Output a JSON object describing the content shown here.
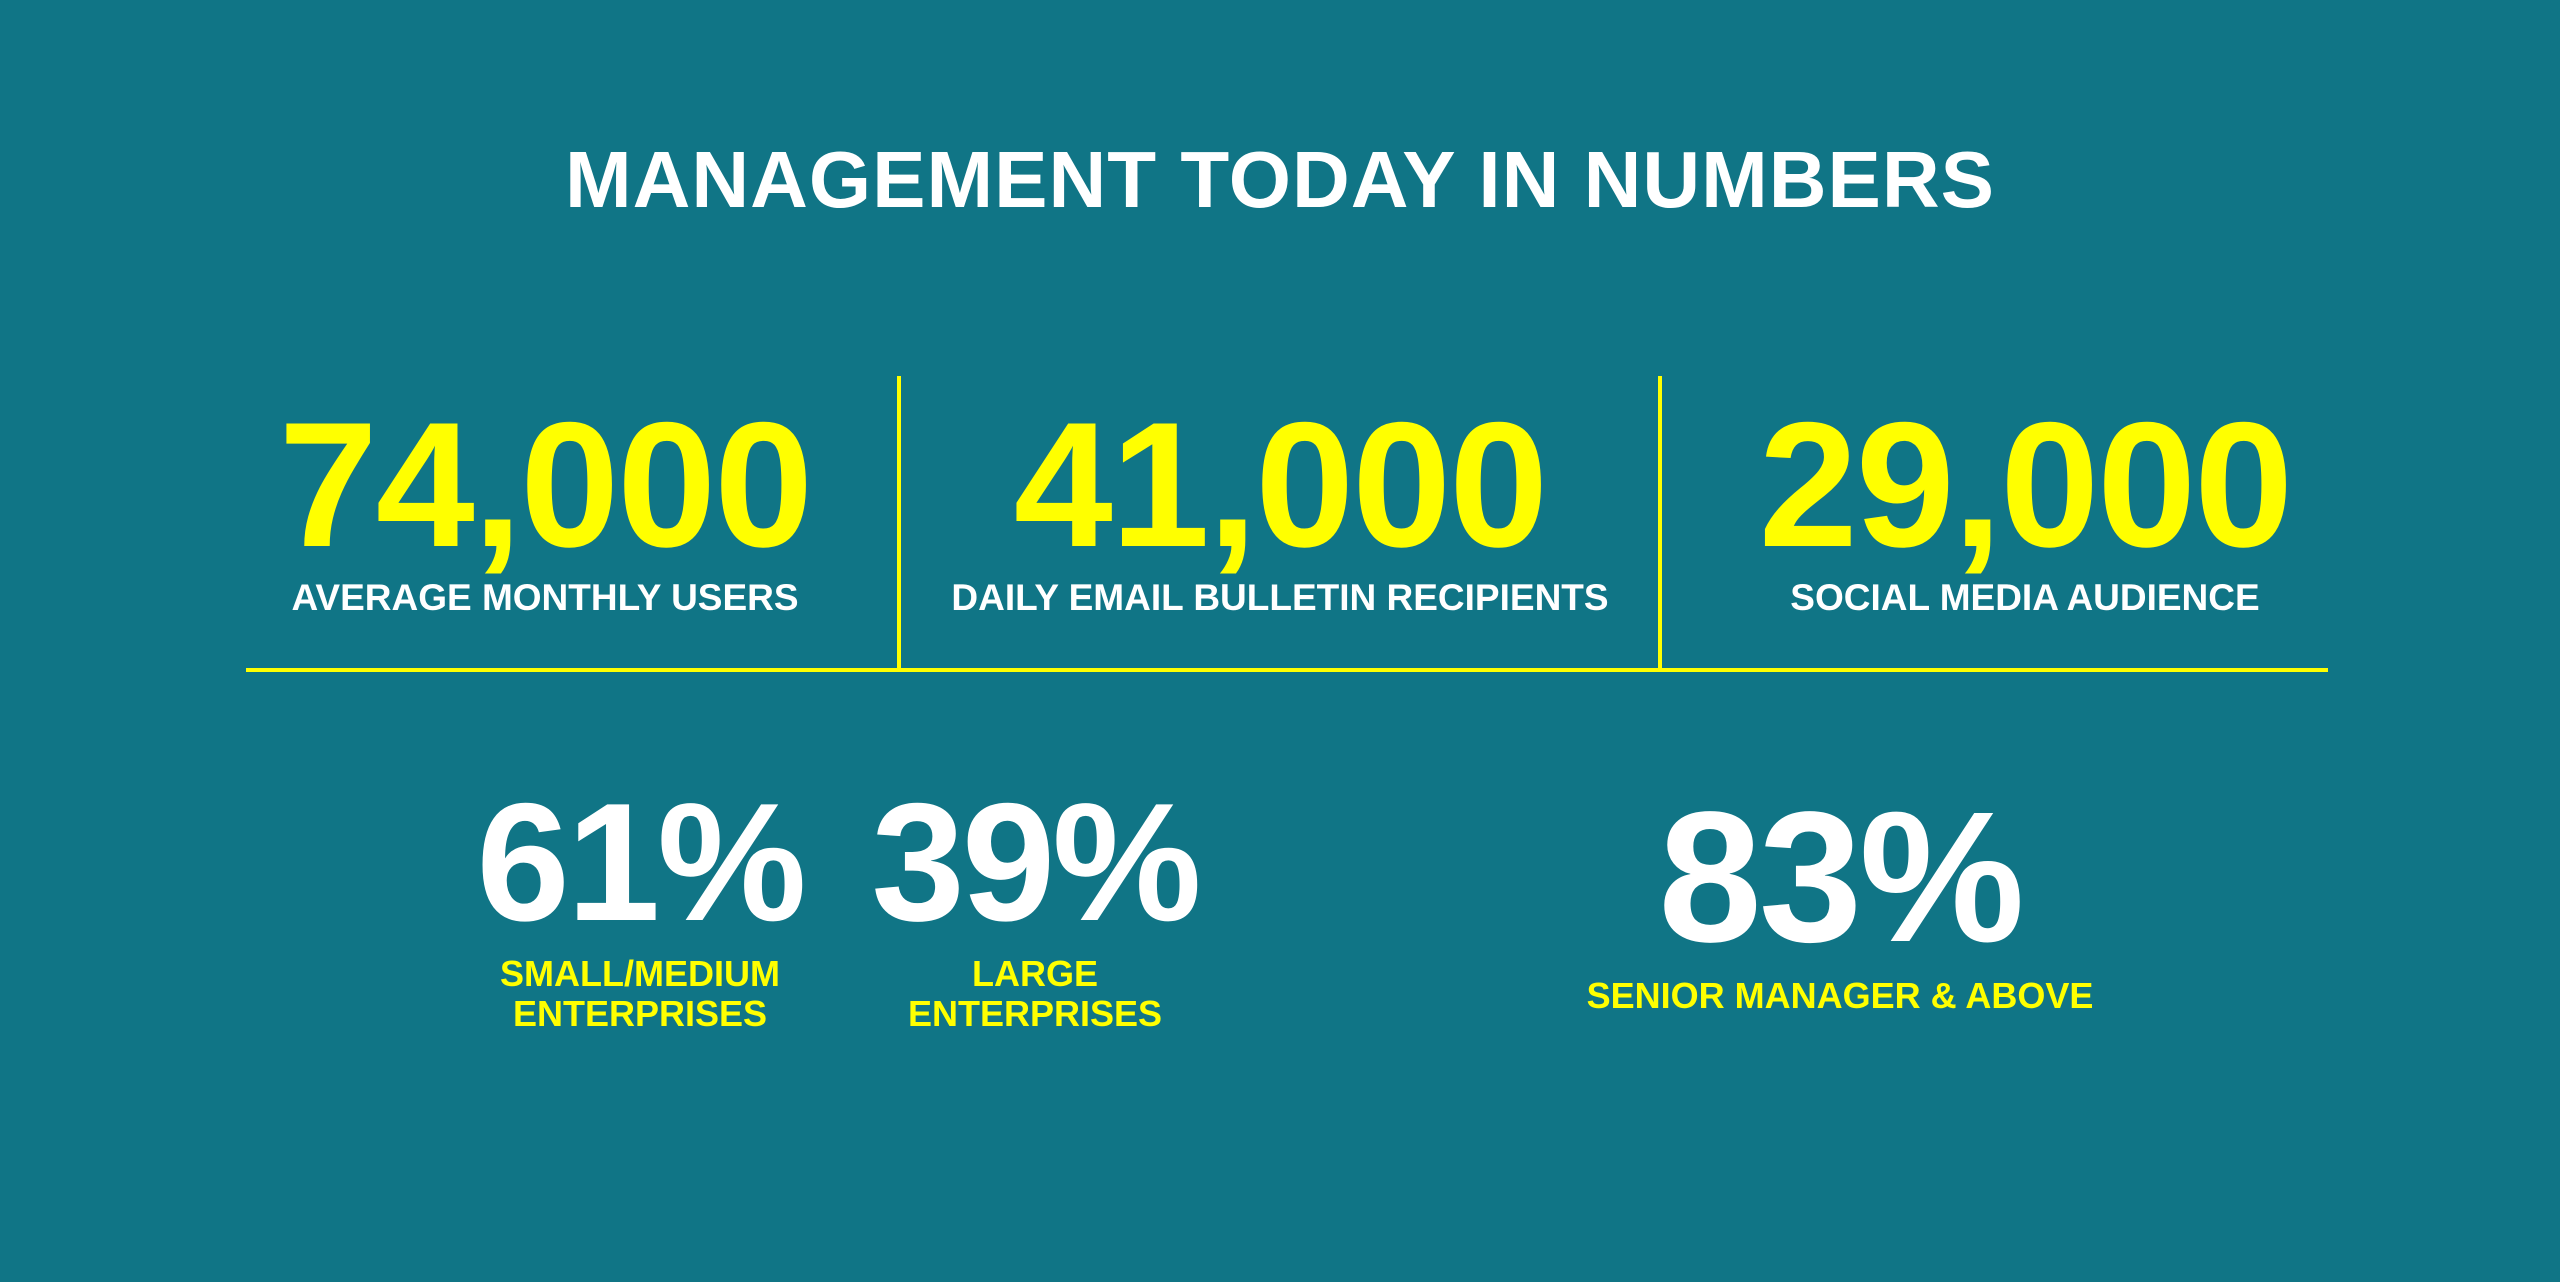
{
  "title": "MANAGEMENT TODAY IN NUMBERS",
  "colors": {
    "background": "#107586",
    "accent": "#ffff00",
    "text": "#ffffff"
  },
  "top_stats": [
    {
      "value": "74,000",
      "label": "AVERAGE MONTHLY USERS"
    },
    {
      "value": "41,000",
      "label": "DAILY EMAIL BULLETIN RECIPIENTS"
    },
    {
      "value": "29,000",
      "label": "SOCIAL MEDIA AUDIENCE"
    }
  ],
  "bottom_stats": [
    {
      "value": "61%",
      "label_line1": "SMALL/MEDIUM",
      "label_line2": "ENTERPRISES"
    },
    {
      "value": "39%",
      "label_line1": "LARGE",
      "label_line2": "ENTERPRISES"
    },
    {
      "value": "83%",
      "label": "SENIOR MANAGER & ABOVE"
    }
  ]
}
